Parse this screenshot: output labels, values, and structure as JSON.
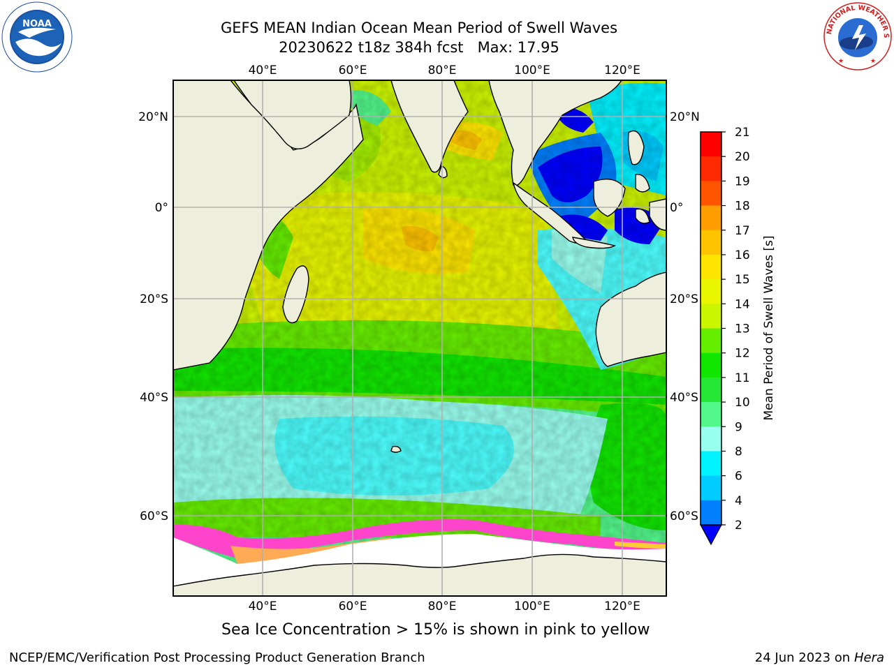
{
  "title": {
    "line1": "GEFS MEAN Indian Ocean Mean Period of Swell Waves",
    "line2": "20230622 t18z 384h fcst   Max: 17.95"
  },
  "map": {
    "lon_labels_top": [
      "40°E",
      "60°E",
      "80°E",
      "100°E",
      "120°E"
    ],
    "lon_labels_bottom": [
      "40°E",
      "60°E",
      "80°E",
      "100°E",
      "120°E"
    ],
    "lat_labels_left": [
      "20°N",
      "0°",
      "20°S",
      "40°S",
      "60°S"
    ],
    "lat_labels_right": [
      "20°N",
      "0°",
      "20°S",
      "40°S",
      "60°S"
    ],
    "land_color": "#eeeedc",
    "ice_colors": [
      "#ff44cc",
      "#ffaa55",
      "#ffcc33"
    ],
    "grid_color": "#b0b0b0"
  },
  "colorbar": {
    "label": "Mean Period of Swell Waves [s]",
    "ticks": [
      "21",
      "20",
      "19",
      "18",
      "17",
      "16",
      "15",
      "14",
      "13",
      "12",
      "11",
      "10",
      "9",
      "8",
      "6",
      "4",
      "2"
    ],
    "colors": [
      "#ff0000",
      "#ff2a00",
      "#ff5500",
      "#ff7b00",
      "#ff9e00",
      "#ffc300",
      "#ffe600",
      "#eaf500",
      "#ccf500",
      "#a6f000",
      "#66ee00",
      "#11e600",
      "#26e636",
      "#52f78a",
      "#99ffee",
      "#4dffff",
      "#00f2ff",
      "#00ccff",
      "#0080ff"
    ],
    "extend_color": "#0000ff"
  },
  "caption": "Sea Ice Concentration > 15% is shown in pink to yellow",
  "footer": {
    "left": "NCEP/EMC/Verification Post Processing Product Generation Branch",
    "right_date": "24 Jun 2023 on",
    "right_machine": "Hera"
  },
  "logos": {
    "noaa_text": "NOAA",
    "nws_text": "NATIONAL WEATHER SERVICE"
  }
}
